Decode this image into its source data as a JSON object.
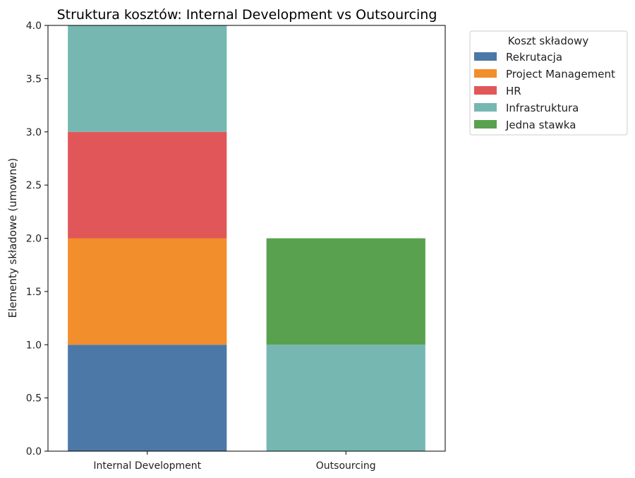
{
  "chart_data": {
    "type": "bar",
    "stacked": true,
    "title": "Struktura kosztów: Internal Development vs Outsourcing",
    "xlabel": "",
    "ylabel": "Elementy składowe (umowne)",
    "categories": [
      "Internal Development",
      "Outsourcing"
    ],
    "ylim": [
      0,
      4.0
    ],
    "yticks": [
      "0.0",
      "0.5",
      "1.0",
      "1.5",
      "2.0",
      "2.5",
      "3.0",
      "3.5",
      "4.0"
    ],
    "grid": false,
    "legend": {
      "title": "Koszt składowy",
      "position": "outside-top-right"
    },
    "series": [
      {
        "name": "Rekrutacja",
        "values": [
          1,
          0
        ],
        "color": "#4c78a8"
      },
      {
        "name": "Project Management",
        "values": [
          1,
          0
        ],
        "color": "#f28e2b"
      },
      {
        "name": "HR",
        "values": [
          1,
          0
        ],
        "color": "#e15759"
      },
      {
        "name": "Infrastruktura",
        "values": [
          1,
          1
        ],
        "color": "#76b7b2"
      },
      {
        "name": "Jedna stawka",
        "values": [
          0,
          1
        ],
        "color": "#59a14f"
      }
    ]
  }
}
